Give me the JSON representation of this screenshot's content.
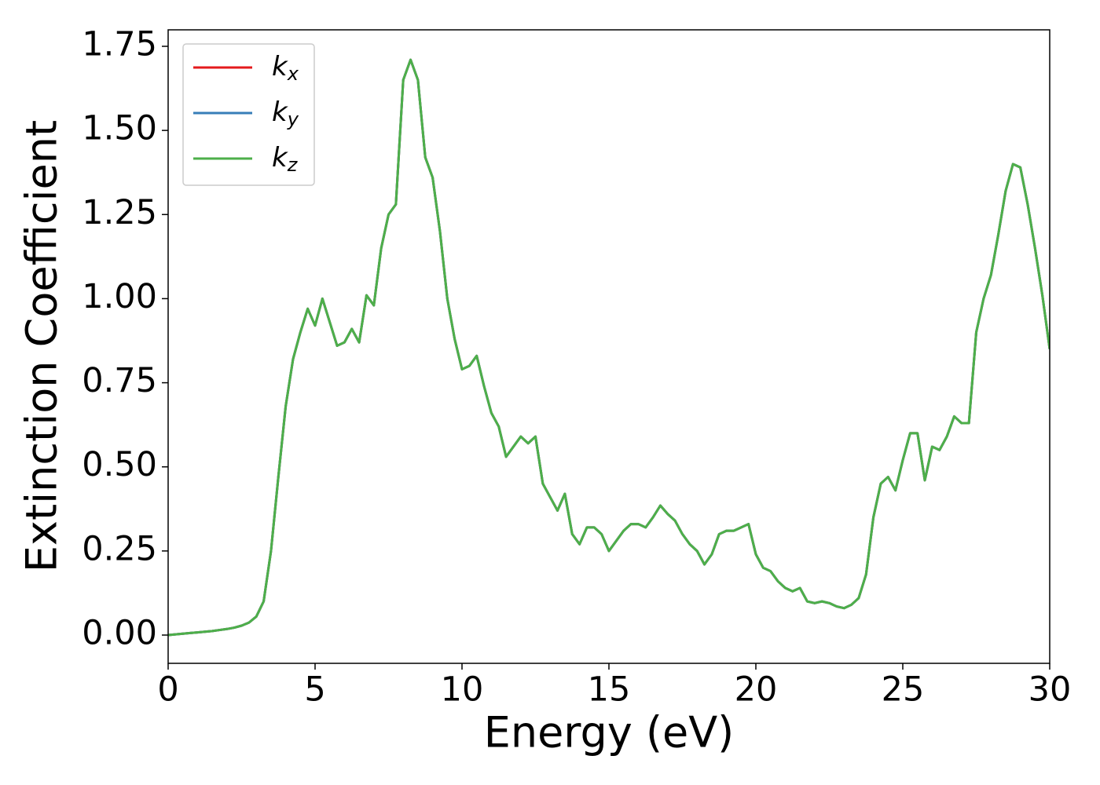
{
  "chart_data": {
    "type": "line",
    "xlabel": "Energy (eV)",
    "ylabel": "Extinction Coefficient",
    "x": [
      0,
      0.25,
      0.5,
      0.75,
      1,
      1.25,
      1.5,
      1.75,
      2,
      2.25,
      2.5,
      2.75,
      3,
      3.25,
      3.5,
      3.75,
      4,
      4.25,
      4.5,
      4.75,
      5,
      5.25,
      5.5,
      5.75,
      6,
      6.25,
      6.5,
      6.75,
      7,
      7.25,
      7.5,
      7.75,
      8,
      8.25,
      8.5,
      8.75,
      9,
      9.25,
      9.5,
      9.75,
      10,
      10.25,
      10.5,
      10.75,
      11,
      11.25,
      11.5,
      11.75,
      12,
      12.25,
      12.5,
      12.75,
      13,
      13.25,
      13.5,
      13.75,
      14,
      14.25,
      14.5,
      14.75,
      15,
      15.25,
      15.5,
      15.75,
      16,
      16.25,
      16.5,
      16.75,
      17,
      17.25,
      17.5,
      17.75,
      18,
      18.25,
      18.5,
      18.75,
      19,
      19.25,
      19.5,
      19.75,
      20,
      20.25,
      20.5,
      20.75,
      21,
      21.25,
      21.5,
      21.75,
      22,
      22.25,
      22.5,
      22.75,
      23,
      23.25,
      23.5,
      23.75,
      24,
      24.25,
      24.5,
      24.75,
      25,
      25.25,
      25.5,
      25.75,
      26,
      26.25,
      26.5,
      26.75,
      27,
      27.25,
      27.5,
      27.75,
      28,
      28.25,
      28.5,
      28.75,
      29,
      29.25,
      29.5,
      29.75,
      30
    ],
    "series": [
      {
        "name": "kx",
        "color": "#e41a1c",
        "values": [
          0,
          0.002,
          0.004,
          0.006,
          0.008,
          0.01,
          0.012,
          0.015,
          0.018,
          0.022,
          0.028,
          0.037,
          0.055,
          0.1,
          0.25,
          0.47,
          0.68,
          0.82,
          0.9,
          0.97,
          0.92,
          1.0,
          0.93,
          0.86,
          0.87,
          0.91,
          0.87,
          1.01,
          0.98,
          1.15,
          1.25,
          1.28,
          1.65,
          1.71,
          1.65,
          1.42,
          1.36,
          1.2,
          1.0,
          0.88,
          0.79,
          0.8,
          0.83,
          0.74,
          0.66,
          0.62,
          0.53,
          0.56,
          0.59,
          0.57,
          0.59,
          0.45,
          0.41,
          0.37,
          0.42,
          0.3,
          0.27,
          0.32,
          0.32,
          0.3,
          0.25,
          0.28,
          0.31,
          0.33,
          0.33,
          0.32,
          0.35,
          0.385,
          0.36,
          0.34,
          0.3,
          0.27,
          0.25,
          0.21,
          0.24,
          0.3,
          0.31,
          0.31,
          0.32,
          0.33,
          0.24,
          0.2,
          0.19,
          0.16,
          0.14,
          0.13,
          0.14,
          0.1,
          0.095,
          0.1,
          0.095,
          0.085,
          0.08,
          0.09,
          0.11,
          0.18,
          0.35,
          0.45,
          0.47,
          0.43,
          0.52,
          0.6,
          0.6,
          0.46,
          0.56,
          0.55,
          0.59,
          0.65,
          0.63,
          0.63,
          0.9,
          1.0,
          1.07,
          1.19,
          1.32,
          1.4,
          1.39,
          1.28,
          1.15,
          1.01,
          0.85
        ]
      },
      {
        "name": "ky",
        "color": "#377eb8",
        "values": [
          0,
          0.002,
          0.004,
          0.006,
          0.008,
          0.01,
          0.012,
          0.015,
          0.018,
          0.022,
          0.028,
          0.037,
          0.055,
          0.1,
          0.25,
          0.47,
          0.68,
          0.82,
          0.9,
          0.97,
          0.92,
          1.0,
          0.93,
          0.86,
          0.87,
          0.91,
          0.87,
          1.01,
          0.98,
          1.15,
          1.25,
          1.28,
          1.65,
          1.71,
          1.65,
          1.42,
          1.36,
          1.2,
          1.0,
          0.88,
          0.79,
          0.8,
          0.83,
          0.74,
          0.66,
          0.62,
          0.53,
          0.56,
          0.59,
          0.57,
          0.59,
          0.45,
          0.41,
          0.37,
          0.42,
          0.3,
          0.27,
          0.32,
          0.32,
          0.3,
          0.25,
          0.28,
          0.31,
          0.33,
          0.33,
          0.32,
          0.35,
          0.385,
          0.36,
          0.34,
          0.3,
          0.27,
          0.25,
          0.21,
          0.24,
          0.3,
          0.31,
          0.31,
          0.32,
          0.33,
          0.24,
          0.2,
          0.19,
          0.16,
          0.14,
          0.13,
          0.14,
          0.1,
          0.095,
          0.1,
          0.095,
          0.085,
          0.08,
          0.09,
          0.11,
          0.18,
          0.35,
          0.45,
          0.47,
          0.43,
          0.52,
          0.6,
          0.6,
          0.46,
          0.56,
          0.55,
          0.59,
          0.65,
          0.63,
          0.63,
          0.9,
          1.0,
          1.07,
          1.19,
          1.32,
          1.4,
          1.39,
          1.28,
          1.15,
          1.01,
          0.85
        ]
      },
      {
        "name": "kz",
        "color": "#4daf4a",
        "values": [
          0,
          0.002,
          0.004,
          0.006,
          0.008,
          0.01,
          0.012,
          0.015,
          0.018,
          0.022,
          0.028,
          0.037,
          0.055,
          0.1,
          0.25,
          0.47,
          0.68,
          0.82,
          0.9,
          0.97,
          0.92,
          1.0,
          0.93,
          0.86,
          0.87,
          0.91,
          0.87,
          1.01,
          0.98,
          1.15,
          1.25,
          1.28,
          1.65,
          1.71,
          1.65,
          1.42,
          1.36,
          1.2,
          1.0,
          0.88,
          0.79,
          0.8,
          0.83,
          0.74,
          0.66,
          0.62,
          0.53,
          0.56,
          0.59,
          0.57,
          0.59,
          0.45,
          0.41,
          0.37,
          0.42,
          0.3,
          0.27,
          0.32,
          0.32,
          0.3,
          0.25,
          0.28,
          0.31,
          0.33,
          0.33,
          0.32,
          0.35,
          0.385,
          0.36,
          0.34,
          0.3,
          0.27,
          0.25,
          0.21,
          0.24,
          0.3,
          0.31,
          0.31,
          0.32,
          0.33,
          0.24,
          0.2,
          0.19,
          0.16,
          0.14,
          0.13,
          0.14,
          0.1,
          0.095,
          0.1,
          0.095,
          0.085,
          0.08,
          0.09,
          0.11,
          0.18,
          0.35,
          0.45,
          0.47,
          0.43,
          0.52,
          0.6,
          0.6,
          0.46,
          0.56,
          0.55,
          0.59,
          0.65,
          0.63,
          0.63,
          0.9,
          1.0,
          1.07,
          1.19,
          1.32,
          1.4,
          1.39,
          1.28,
          1.15,
          1.01,
          0.85
        ]
      }
    ],
    "xlim": [
      0,
      30
    ],
    "xticks": [
      0,
      5,
      10,
      15,
      20,
      25,
      30
    ],
    "ylim": [
      -0.084,
      1.799
    ],
    "yticks": [
      {
        "value": 0,
        "label": "0.00"
      },
      {
        "value": 0.25,
        "label": "0.25"
      },
      {
        "value": 0.5,
        "label": "0.50"
      },
      {
        "value": 0.75,
        "label": "0.75"
      },
      {
        "value": 1,
        "label": "1.00"
      },
      {
        "value": 1.25,
        "label": "1.25"
      },
      {
        "value": 1.5,
        "label": "1.50"
      },
      {
        "value": 1.75,
        "label": "1.75"
      }
    ],
    "grid": false,
    "legend": "upper left"
  }
}
